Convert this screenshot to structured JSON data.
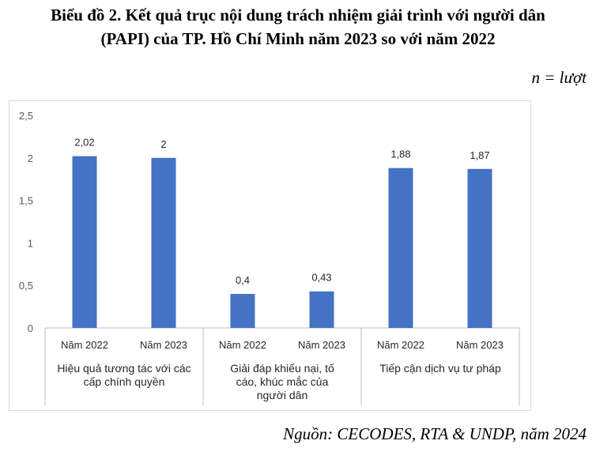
{
  "title_line1": "Biểu đồ 2. Kết quả trục nội dung trách nhiệm giải trình với người dân",
  "title_line2": "(PAPI) của TP. Hồ Chí Minh năm 2023 so với năm 2022",
  "unit_label": "n = lượt",
  "source": "Nguồn: CECODES, RTA & UNDP, năm 2024",
  "chart_data": {
    "type": "bar",
    "groups": [
      {
        "name": "Hiệu quả tương tác với các cấp chính quyền",
        "name_lines": [
          "Hiệu quả tương tác với các",
          "cấp chính quyền"
        ],
        "categories": [
          "Năm 2022",
          "Năm 2023"
        ],
        "values": [
          2.02,
          2
        ],
        "labels": [
          "2,02",
          "2"
        ]
      },
      {
        "name": "Giải đáp khiếu nại, tố cáo, khúc mắc của người dân",
        "name_lines": [
          "Giải   đáp   khiếu     nại,  tố",
          "cáo,       khúc       mắc    của",
          "người          dân"
        ],
        "categories": [
          "Năm 2022",
          "Năm 2023"
        ],
        "values": [
          0.4,
          0.43
        ],
        "labels": [
          "0,4",
          "0,43"
        ]
      },
      {
        "name": "Tiếp cận dịch vụ tư pháp",
        "name_lines": [
          "Tiếp cận dịch vụ tư pháp"
        ],
        "categories": [
          "Năm 2022",
          "Năm 2023"
        ],
        "values": [
          1.88,
          1.87
        ],
        "labels": [
          "1,88",
          "1,87"
        ]
      }
    ],
    "yticks": [
      "0",
      "0,5",
      "1",
      "1,5",
      "2",
      "2,5"
    ],
    "ylim": [
      0,
      2.5
    ],
    "bar_color": "#4472c4",
    "grid": false
  }
}
